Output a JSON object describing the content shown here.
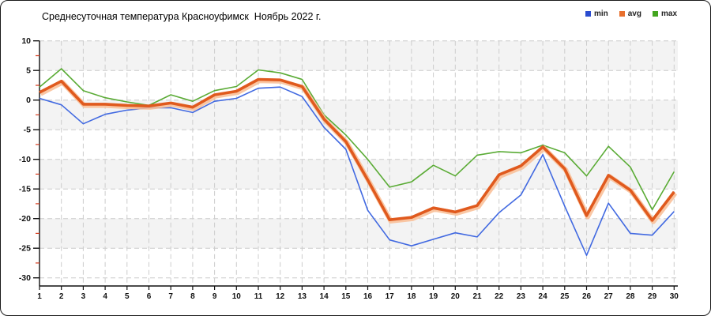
{
  "window": {
    "title": "Среднесуточная температура Красноуфимск  Ноябрь 2022 г."
  },
  "legend": [
    {
      "label": "min",
      "color": "#2a4cd0"
    },
    {
      "label": "avg",
      "color": "#e8702e"
    },
    {
      "label": "max",
      "color": "#43a51f"
    }
  ],
  "chart_data": {
    "type": "line",
    "title": "Среднесуточная температура Красноуфимск  Ноябрь 2022 г.",
    "xlabel": "",
    "ylabel": "",
    "x": [
      1,
      2,
      3,
      4,
      5,
      6,
      7,
      8,
      9,
      10,
      11,
      12,
      13,
      14,
      15,
      16,
      17,
      18,
      19,
      20,
      21,
      22,
      23,
      24,
      25,
      26,
      27,
      28,
      29,
      30
    ],
    "xtick_labels": [
      "1",
      "2",
      "3",
      "4",
      "5",
      "6",
      "7",
      "8",
      "9",
      "10",
      "11",
      "12",
      "13",
      "14",
      "15",
      "16",
      "17",
      "18",
      "19",
      "20",
      "21",
      "22",
      "23",
      "24",
      "25",
      "26",
      "27",
      "28",
      "29",
      "30"
    ],
    "ylim": [
      -30,
      10
    ],
    "ytick_step": 5,
    "ytick_labels": [
      "10",
      "5",
      "0",
      "-5",
      "-10",
      "-15",
      "-20",
      "-25",
      "-30"
    ],
    "grid": "dashed",
    "legend_position": "top-right",
    "bands": [
      [
        10,
        5
      ],
      [
        0,
        -5
      ],
      [
        -10,
        -15
      ],
      [
        -20,
        -25
      ]
    ],
    "series": [
      {
        "name": "min",
        "color": "#4169e1",
        "width": 1.6,
        "values": [
          0.3,
          -0.8,
          -4.0,
          -2.4,
          -1.7,
          -1.3,
          -1.3,
          -2.1,
          -0.2,
          0.3,
          2.0,
          2.2,
          0.6,
          -4.6,
          -8.3,
          -18.6,
          -23.6,
          -24.6,
          -23.5,
          -22.4,
          -23.1,
          -19.0,
          -16.0,
          -9.2,
          -17.9,
          -26.2,
          -17.4,
          -22.5,
          -22.8,
          -18.8
        ]
      },
      {
        "name": "avg",
        "color": "#e05a1e",
        "halo": "#f9bd94",
        "width": 3.6,
        "values": [
          1.3,
          3.2,
          -0.7,
          -0.7,
          -0.9,
          -1.0,
          -0.5,
          -1.2,
          0.9,
          1.5,
          3.5,
          3.4,
          2.3,
          -3.2,
          -7.0,
          -13.5,
          -20.2,
          -19.8,
          -18.2,
          -18.9,
          -17.8,
          -12.6,
          -11.1,
          -7.9,
          -11.6,
          -19.5,
          -12.7,
          -15.2,
          -20.3,
          -15.5
        ]
      },
      {
        "name": "max",
        "color": "#5aab35",
        "width": 1.6,
        "values": [
          2.2,
          5.3,
          1.6,
          0.4,
          -0.3,
          -0.9,
          0.9,
          -0.2,
          1.6,
          2.3,
          5.1,
          4.6,
          3.5,
          -2.5,
          -5.9,
          -10.0,
          -14.7,
          -13.8,
          -11.0,
          -12.8,
          -9.3,
          -8.7,
          -8.9,
          -7.6,
          -8.9,
          -12.8,
          -7.8,
          -11.3,
          -18.5,
          -12.1
        ]
      }
    ],
    "axis_color": "#111111",
    "grid_color": "#cccccc",
    "band_color": "#f3f3f3",
    "minor_tick_color": "#d63c1e"
  }
}
